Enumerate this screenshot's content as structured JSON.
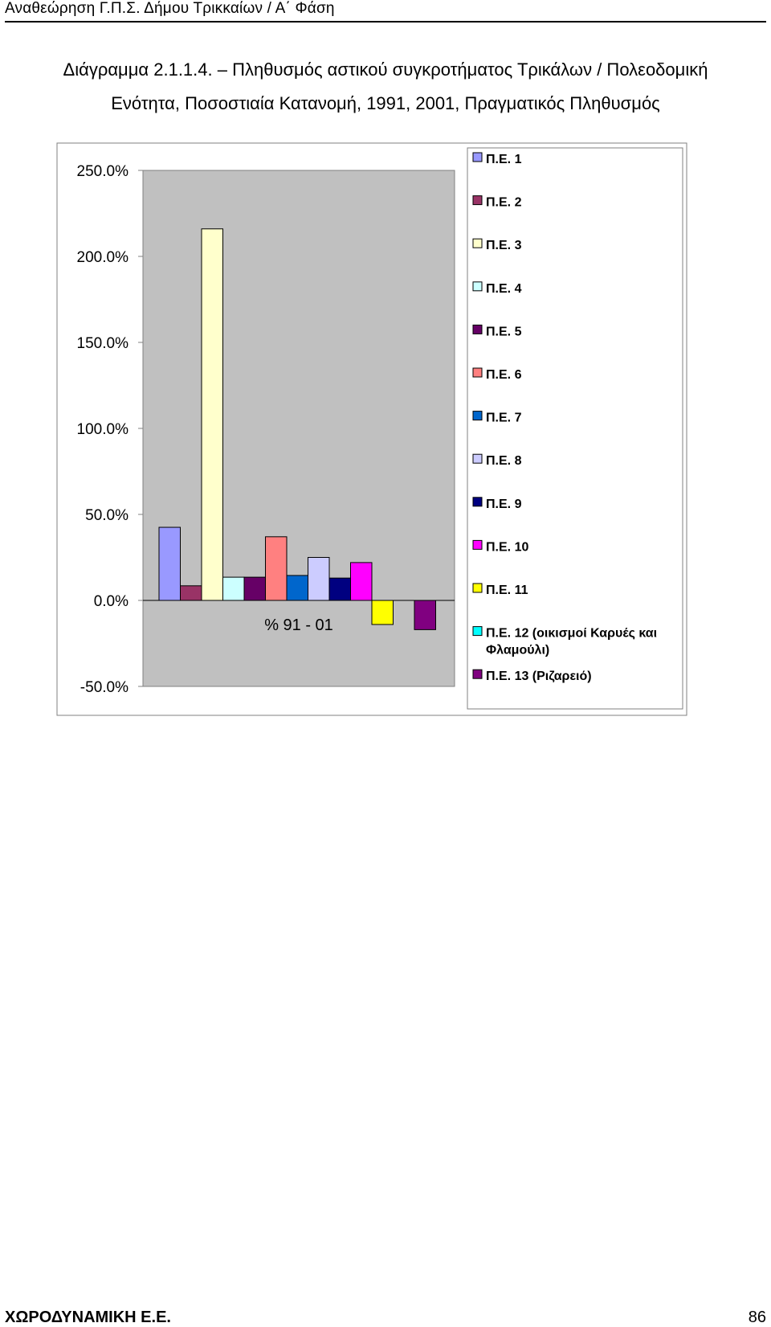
{
  "header": {
    "text": "Αναθεώρηση Γ.Π.Σ. Δήμου Τρικκαίων / Α΄ Φάση"
  },
  "caption": {
    "line1": "Διάγραμμα 2.1.1.4. – Πληθυσμός αστικού συγκροτήματος Τρικάλων / Πολεοδομική",
    "line2": "Ενότητα, Ποσοστιαία Κατανομή, 1991, 2001, Πραγματικός Πληθυσμός"
  },
  "chart_data": {
    "type": "bar",
    "categories": [
      "% 91 - 01"
    ],
    "ylim": [
      -50,
      250
    ],
    "yticks": [
      250,
      200,
      150,
      100,
      50,
      0,
      -50
    ],
    "ytick_labels": [
      "250.0%",
      "200.0%",
      "150.0%",
      "100.0%",
      "50.0%",
      "0.0%",
      "-50.0%"
    ],
    "grid": false,
    "plot_background": "#c0c0c0",
    "legend_position": "right",
    "series": [
      {
        "name": "Π.Ε. 1",
        "values": [
          42.5
        ],
        "color": "#9999ff"
      },
      {
        "name": "Π.Ε. 2",
        "values": [
          8.5
        ],
        "color": "#993366"
      },
      {
        "name": "Π.Ε. 3",
        "values": [
          216
        ],
        "color": "#ffffcc"
      },
      {
        "name": "Π.Ε. 4",
        "values": [
          13.5
        ],
        "color": "#ccffff"
      },
      {
        "name": "Π.Ε. 5",
        "values": [
          13.5
        ],
        "color": "#660066"
      },
      {
        "name": "Π.Ε. 6",
        "values": [
          37
        ],
        "color": "#ff8080"
      },
      {
        "name": "Π.Ε. 7",
        "values": [
          14.5
        ],
        "color": "#0066cc"
      },
      {
        "name": "Π.Ε. 8",
        "values": [
          25
        ],
        "color": "#ccccff"
      },
      {
        "name": "Π.Ε. 9",
        "values": [
          13
        ],
        "color": "#000080"
      },
      {
        "name": "Π.Ε. 10",
        "values": [
          22
        ],
        "color": "#ff00ff"
      },
      {
        "name": "Π.Ε. 11",
        "values": [
          -14
        ],
        "color": "#ffff00"
      },
      {
        "name": "Π.Ε. 12 (οικισμοί Καρυές και Φλαμούλι)",
        "values": [
          0
        ],
        "color": "#00ffff"
      },
      {
        "name": "Π.Ε. 13 (Ριζαρειό)",
        "values": [
          -17
        ],
        "color": "#800080"
      }
    ]
  },
  "footer": {
    "company": "ΧΩΡΟΔΥΝΑΜΙΚΗ Ε.Ε.",
    "page_number": "86"
  }
}
